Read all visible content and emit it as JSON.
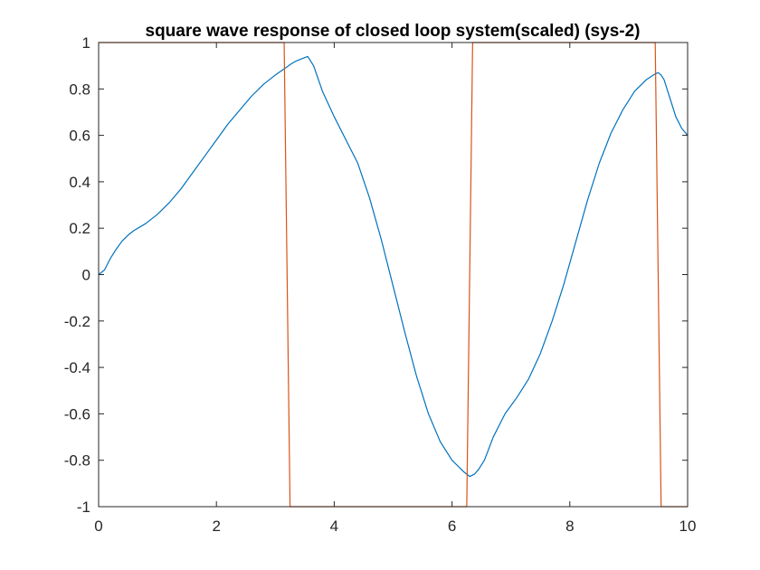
{
  "chart_data": {
    "type": "line",
    "title": "square wave response of closed loop system(scaled) (sys-2)",
    "xlabel": "",
    "ylabel": "",
    "xlim": [
      0,
      10
    ],
    "ylim": [
      -1,
      1
    ],
    "x_ticks": [
      0,
      2,
      4,
      6,
      8,
      10
    ],
    "y_ticks": [
      -1,
      -0.8,
      -0.6,
      -0.4,
      -0.2,
      0,
      0.2,
      0.4,
      0.6,
      0.8,
      1
    ],
    "x_tick_labels": [
      "0",
      "2",
      "4",
      "6",
      "8",
      "10"
    ],
    "y_tick_labels": [
      "-1",
      "-0.8",
      "-0.6",
      "-0.4",
      "-0.2",
      "0",
      "0.2",
      "0.4",
      "0.6",
      "0.8",
      "1"
    ],
    "grid": false,
    "legend": "none",
    "series": [
      {
        "color": "#0072BD",
        "x": [
          0,
          0.1,
          0.2,
          0.3,
          0.4,
          0.5,
          0.6,
          0.8,
          1.0,
          1.2,
          1.4,
          1.6,
          1.8,
          2.0,
          2.2,
          2.4,
          2.6,
          2.8,
          3.0,
          3.2,
          3.25,
          3.35,
          3.45,
          3.55,
          3.65,
          3.8,
          4.0,
          4.2,
          4.4,
          4.6,
          4.8,
          5.0,
          5.2,
          5.4,
          5.6,
          5.8,
          6.0,
          6.2,
          6.3,
          6.38,
          6.45,
          6.55,
          6.7,
          6.9,
          7.1,
          7.3,
          7.5,
          7.7,
          7.9,
          8.1,
          8.3,
          8.5,
          8.7,
          8.9,
          9.1,
          9.3,
          9.45,
          9.5,
          9.55,
          9.6,
          9.7,
          9.8,
          9.9,
          10.0
        ],
        "y": [
          0,
          0.02,
          0.07,
          0.11,
          0.145,
          0.17,
          0.19,
          0.22,
          0.26,
          0.31,
          0.37,
          0.44,
          0.51,
          0.58,
          0.65,
          0.71,
          0.77,
          0.82,
          0.86,
          0.895,
          0.905,
          0.92,
          0.93,
          0.94,
          0.9,
          0.79,
          0.68,
          0.58,
          0.48,
          0.33,
          0.15,
          -0.05,
          -0.25,
          -0.44,
          -0.6,
          -0.72,
          -0.8,
          -0.85,
          -0.87,
          -0.86,
          -0.84,
          -0.8,
          -0.7,
          -0.6,
          -0.53,
          -0.45,
          -0.34,
          -0.2,
          -0.04,
          0.14,
          0.32,
          0.48,
          0.61,
          0.71,
          0.79,
          0.84,
          0.865,
          0.87,
          0.86,
          0.84,
          0.76,
          0.68,
          0.63,
          0.6
        ]
      },
      {
        "color": "#D95319",
        "x": [
          0,
          3.15,
          3.25,
          6.25,
          6.35,
          9.45,
          9.55,
          10.0
        ],
        "y": [
          1,
          1,
          -1,
          -1,
          1,
          1,
          -1,
          -1
        ]
      }
    ]
  },
  "colors": {
    "background": "#ffffff",
    "axes": "#262626",
    "series_1": "#0072BD",
    "series_2": "#D95319"
  }
}
